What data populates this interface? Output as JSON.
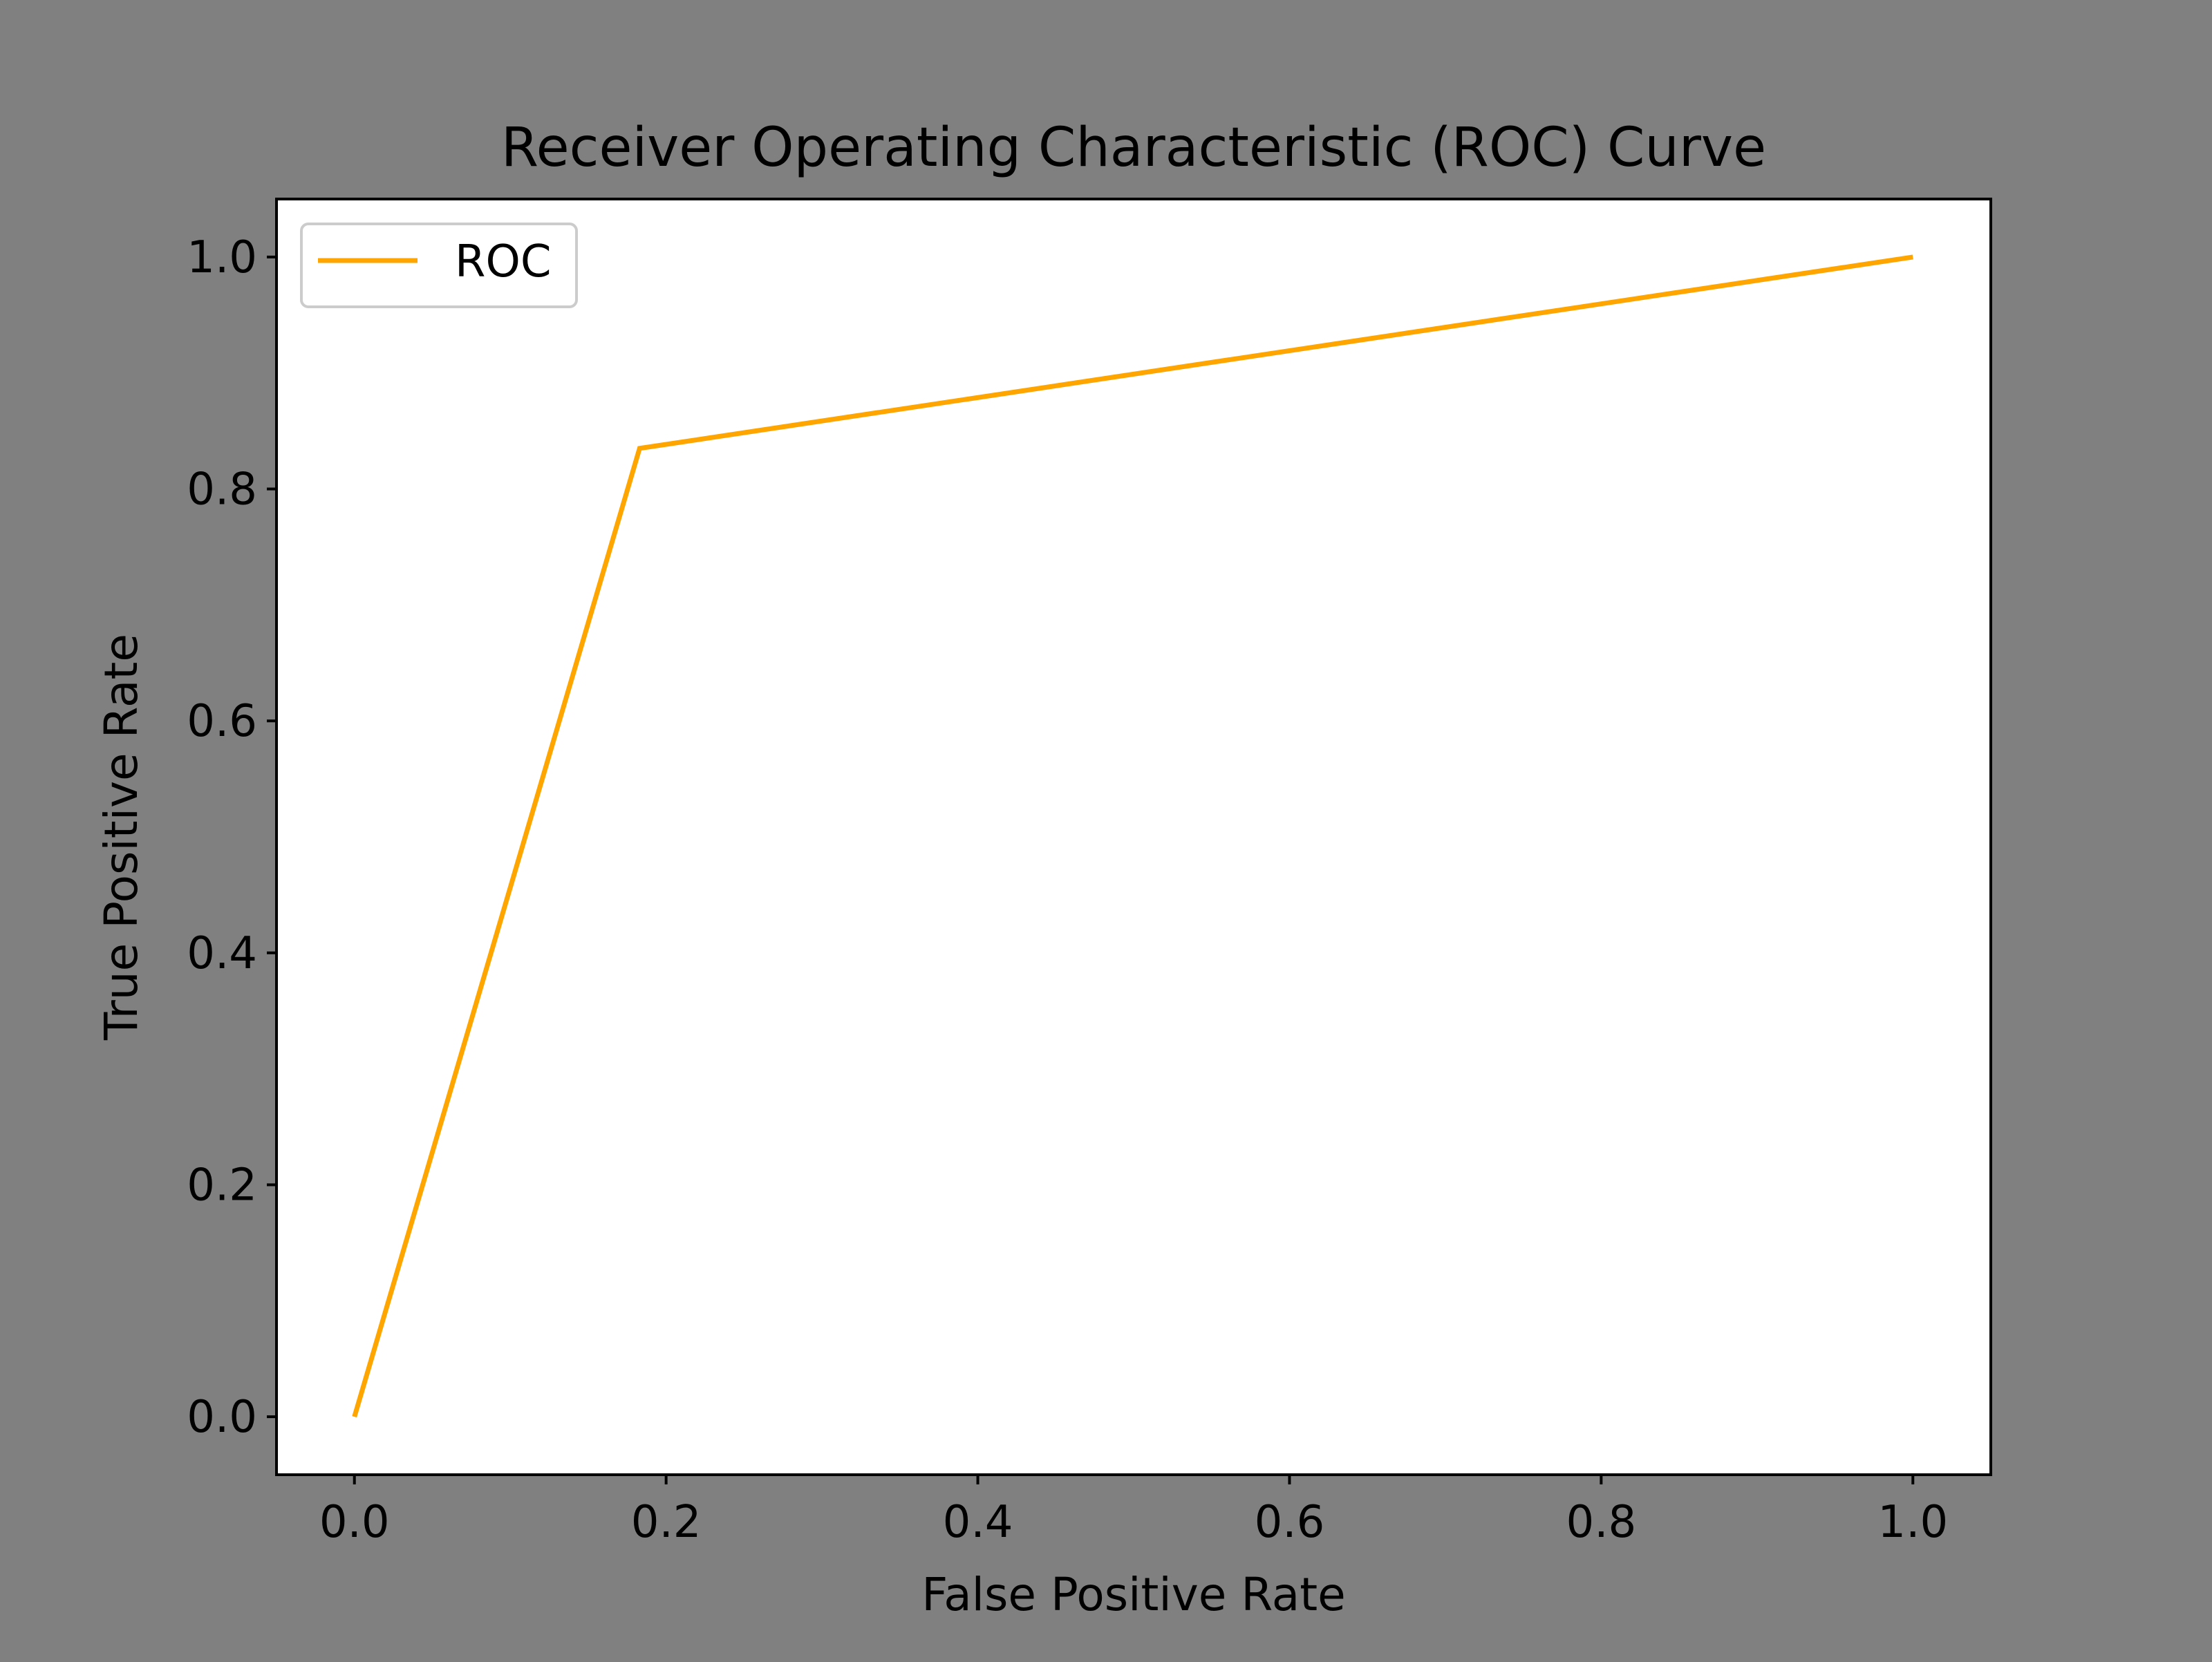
{
  "figure": {
    "background": "#808080",
    "plot_background": "#ffffff",
    "axis_color": "#000000"
  },
  "chart_data": {
    "type": "line",
    "title": "Receiver Operating Characteristic (ROC) Curve",
    "xlabel": "False Positive Rate",
    "ylabel": "True Positive Rate",
    "xlim": [
      -0.05,
      1.05
    ],
    "ylim": [
      -0.05,
      1.05
    ],
    "xticks": [
      0.0,
      0.2,
      0.4,
      0.6,
      0.8,
      1.0
    ],
    "yticks": [
      0.0,
      0.2,
      0.4,
      0.6,
      0.8,
      1.0
    ],
    "xtick_labels": [
      "0.0",
      "0.2",
      "0.4",
      "0.6",
      "0.8",
      "1.0"
    ],
    "ytick_labels": [
      "0.0",
      "0.2",
      "0.4",
      "0.6",
      "0.8",
      "1.0"
    ],
    "grid": false,
    "legend_position": "upper-left",
    "series": [
      {
        "name": "ROC",
        "color": "#ffa500",
        "x": [
          0.0,
          0.183,
          1.0
        ],
        "y": [
          0.0,
          0.835,
          1.0
        ]
      }
    ]
  }
}
